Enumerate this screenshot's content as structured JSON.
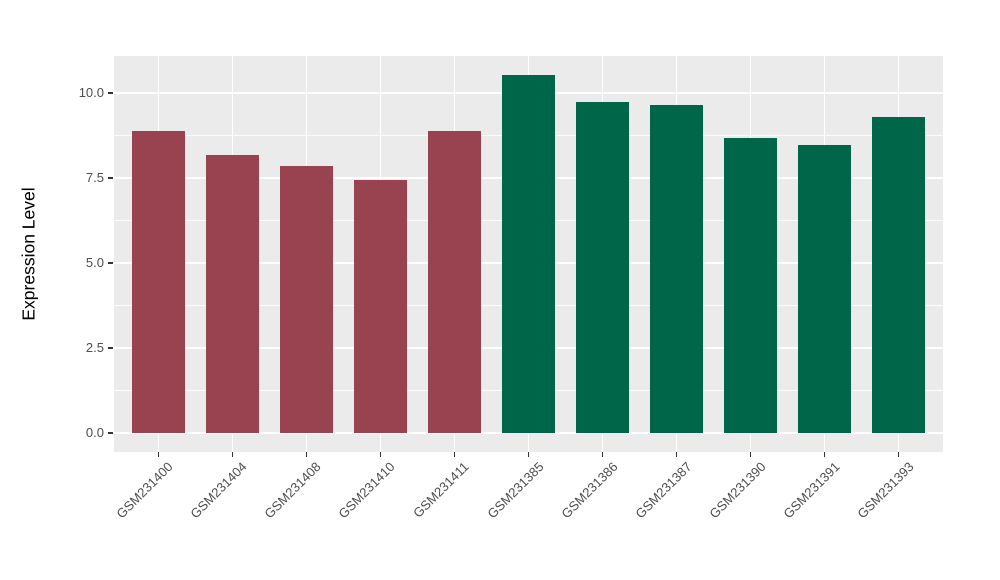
{
  "figure": {
    "background_color": "#FFFFFF",
    "panel_background_color": "#EBEBEB",
    "gridline_color": "#FFFFFF",
    "axis_text_color": "#4D4D4D",
    "axis_title_color": "#000000",
    "tick_mark_color": "#333333"
  },
  "chart_data": {
    "type": "bar",
    "title": "",
    "xlabel": "",
    "ylabel": "Expression Level",
    "categories": [
      "GSM231400",
      "GSM231404",
      "GSM231408",
      "GSM231410",
      "GSM231411",
      "GSM231385",
      "GSM231386",
      "GSM231387",
      "GSM231390",
      "GSM231391",
      "GSM231393"
    ],
    "values": [
      8.88,
      8.18,
      7.85,
      7.44,
      8.88,
      10.53,
      9.74,
      9.65,
      8.68,
      8.47,
      9.29
    ],
    "bar_colors": [
      "#9A4350",
      "#9A4350",
      "#9A4350",
      "#9A4350",
      "#9A4350",
      "#006649",
      "#006649",
      "#006649",
      "#006649",
      "#006649",
      "#006649"
    ],
    "groups": [
      {
        "name": "red-group",
        "color": "#9A4350",
        "categories": [
          "GSM231400",
          "GSM231404",
          "GSM231408",
          "GSM231410",
          "GSM231411"
        ]
      },
      {
        "name": "green-group",
        "color": "#006649",
        "categories": [
          "GSM231385",
          "GSM231386",
          "GSM231387",
          "GSM231390",
          "GSM231391",
          "GSM231393"
        ]
      }
    ],
    "y_ticks": [
      0.0,
      2.5,
      5.0,
      7.5,
      10.0
    ],
    "y_tick_labels": [
      "0.0",
      "2.5",
      "5.0",
      "7.5",
      "10.0"
    ],
    "y_minor_ticks": [
      1.25,
      3.75,
      6.25,
      8.75
    ],
    "ylim": [
      -0.56,
      11.09
    ],
    "x_label_angle_deg": 45,
    "grid": true,
    "legend": "none"
  }
}
